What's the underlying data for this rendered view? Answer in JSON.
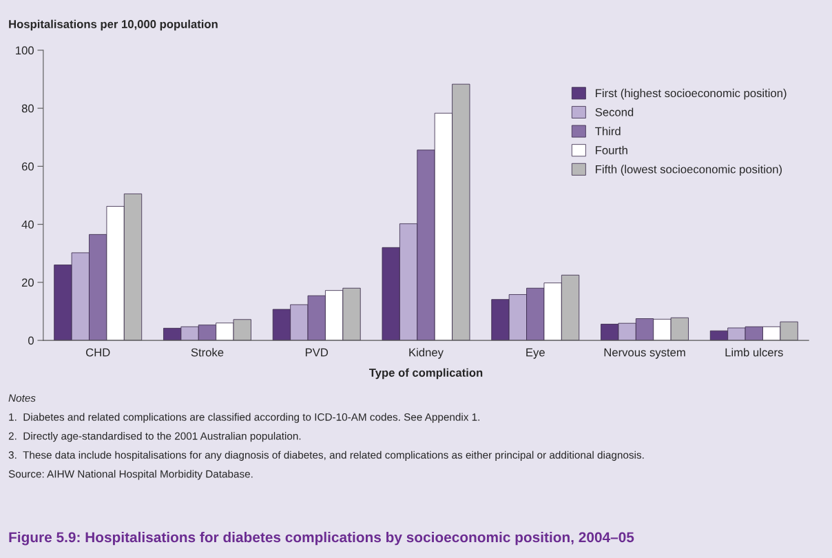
{
  "chart_data": {
    "type": "bar",
    "title": "Figure 5.9: Hospitalisations for diabetes complications by socioeconomic position, 2004–05",
    "ylabel": "Hospitalisations per 10,000 population",
    "xlabel": "Type of complication",
    "categories": [
      "CHD",
      "Stroke",
      "PVD",
      "Kidney",
      "Eye",
      "Nervous system",
      "Limb ulcers"
    ],
    "series": [
      {
        "name": "First (highest socioeconomic position)",
        "color": "#5b3a7e",
        "values": [
          26,
          4.2,
          10.7,
          32,
          14.1,
          5.6,
          3.3
        ]
      },
      {
        "name": "Second",
        "color": "#bbaed3",
        "values": [
          30.2,
          4.7,
          12.3,
          40.2,
          15.8,
          5.9,
          4.3
        ]
      },
      {
        "name": "Third",
        "color": "#8870a6",
        "values": [
          36.5,
          5.3,
          15.4,
          65.6,
          18,
          7.5,
          4.7
        ]
      },
      {
        "name": "Fourth",
        "color": "#ffffff",
        "values": [
          46.2,
          6,
          17.2,
          78.3,
          19.8,
          7.3,
          4.7
        ]
      },
      {
        "name": "Fifth (lowest socioeconomic position)",
        "color": "#b8b8b8",
        "values": [
          50.5,
          7.2,
          18,
          88.3,
          22.5,
          7.8,
          6.4
        ]
      }
    ],
    "ylim": [
      0,
      100
    ],
    "yticks": [
      0,
      20,
      40,
      60,
      80,
      100
    ],
    "grid": false,
    "legend": "right",
    "annotations": [
      "Notes",
      "1.  Diabetes and related complications are classified according to ICD-10-AM codes. See Appendix 1.",
      "2.  Directly age-standardised to the 2001 Australian population.",
      "3.  These data include hospitalisations for any diagnosis of diabetes, and related complications as either principal or additional diagnosis.",
      "Source: AIHW National Hospital Morbidity Database."
    ]
  }
}
